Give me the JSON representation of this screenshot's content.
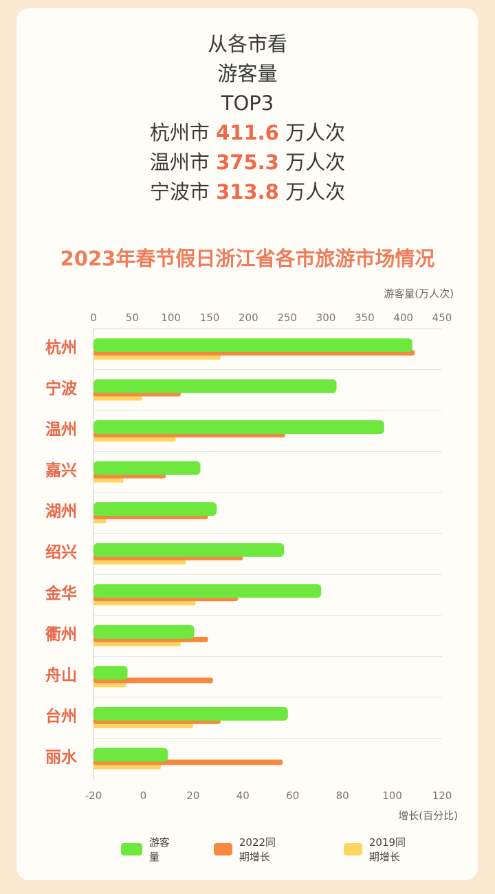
{
  "headline": {
    "lines": [
      {
        "text": "从各市看"
      },
      {
        "text": "游客量"
      },
      {
        "text": "TOP3"
      },
      {
        "city": "杭州市",
        "value": "411.6",
        "unit": "万人次"
      },
      {
        "city": "温州市",
        "value": "375.3",
        "unit": "万人次"
      },
      {
        "city": "宁波市",
        "value": "313.8",
        "unit": "万人次"
      }
    ]
  },
  "chart_data": {
    "type": "bar",
    "orientation": "horizontal",
    "title": "2023年春节假日浙江省各市旅游市场情况",
    "top_axis": {
      "label": "游客量(万人次)",
      "range": [
        0,
        450
      ],
      "ticks": [
        "0",
        "50",
        "100",
        "150",
        "200",
        "250",
        "300",
        "350",
        "400",
        "450"
      ]
    },
    "bottom_axis": {
      "label": "增长(百分比)",
      "range": [
        -20,
        120
      ],
      "ticks": [
        "-20",
        "0",
        "20",
        "40",
        "60",
        "80",
        "100",
        "120"
      ]
    },
    "categories": [
      "杭州",
      "宁波",
      "温州",
      "嘉兴",
      "湖州",
      "绍兴",
      "金华",
      "衢州",
      "舟山",
      "台州",
      "丽水"
    ],
    "series": [
      {
        "name": "游客量",
        "axis": "top",
        "color": "#6ee83e",
        "values": [
          411.6,
          313.8,
          375.3,
          138,
          159,
          246,
          294,
          130,
          44,
          251,
          96
        ]
      },
      {
        "name": "2022同期增长",
        "axis": "bottom",
        "color": "#f5893f",
        "values": [
          109,
          15,
          57,
          9,
          26,
          40,
          38,
          26,
          28,
          31,
          56
        ]
      },
      {
        "name": "2019同期增长",
        "axis": "bottom",
        "color": "#fdd661",
        "values": [
          31,
          -0.5,
          13,
          -8,
          -15,
          17,
          21,
          15,
          -7,
          20,
          7
        ]
      }
    ],
    "legend_position": "bottom"
  }
}
